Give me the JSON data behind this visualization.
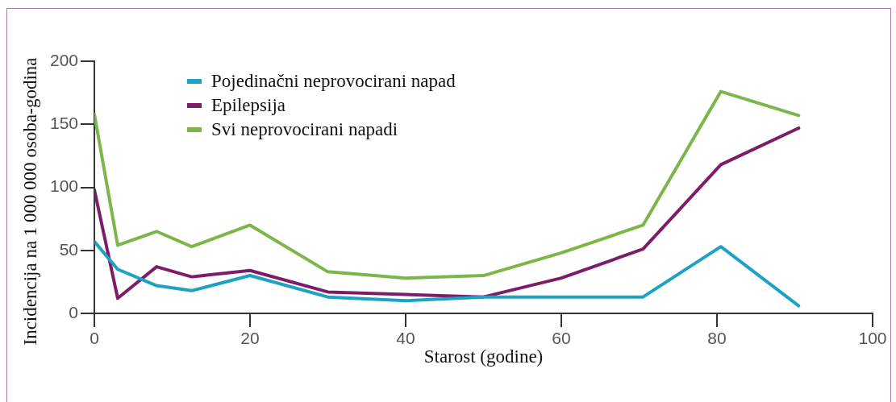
{
  "chart_data": {
    "type": "line",
    "xlabel": "Starost (godine)",
    "ylabel": "Incidencija na 1 000 000 osoba-godina",
    "x": [
      0,
      3,
      8,
      12.5,
      20,
      30,
      40,
      50,
      60,
      70.5,
      80.5,
      90.5
    ],
    "series": [
      {
        "name": "Pojedinačni neprovocirani napad",
        "color": "#1da2c4",
        "values": [
          57,
          35,
          22,
          18,
          30,
          13,
          10,
          13,
          13,
          13,
          53,
          6
        ]
      },
      {
        "name": "Epilepsija",
        "color": "#7d1c69",
        "values": [
          98,
          12,
          37,
          29,
          34,
          17,
          15,
          13,
          28,
          51,
          118,
          147
        ]
      },
      {
        "name": "Svi neprovocirani napadi",
        "color": "#7cb648",
        "values": [
          158,
          54,
          65,
          53,
          70,
          33,
          28,
          30,
          48,
          70,
          176,
          157
        ]
      }
    ],
    "xlim": [
      0,
      100
    ],
    "xticks": [
      0,
      20,
      40,
      60,
      80,
      100
    ],
    "ylim": [
      0,
      200
    ],
    "yticks": [
      0,
      50,
      100,
      150,
      200
    ],
    "legend": "top left"
  }
}
